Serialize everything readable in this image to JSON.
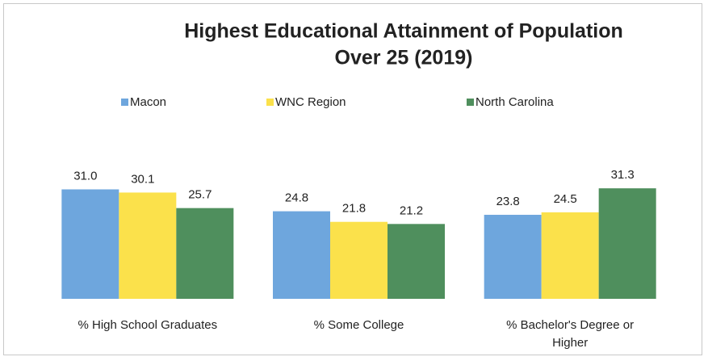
{
  "chart_data": {
    "type": "bar",
    "title": [
      "Highest Educational Attainment of Population",
      "Over 25 (2019)"
    ],
    "categories": [
      "% High School Graduates",
      "% Some College",
      "% Bachelor's Degree or Higher"
    ],
    "series": [
      {
        "name": "Macon",
        "color": "#6ea6dd",
        "values": [
          31.0,
          24.8,
          23.8
        ],
        "value_labels": [
          "31.0",
          "24.8",
          "23.8"
        ]
      },
      {
        "name": "WNC Region",
        "color": "#fbe14b",
        "values": [
          30.1,
          21.8,
          24.5
        ],
        "value_labels": [
          "30.1",
          "21.8",
          "24.5"
        ]
      },
      {
        "name": "North Carolina",
        "color": "#4f8f5d",
        "values": [
          25.7,
          21.2,
          31.3
        ],
        "value_labels": [
          "25.7",
          "21.2",
          "31.3"
        ]
      }
    ],
    "ylim": [
      0,
      35
    ]
  }
}
